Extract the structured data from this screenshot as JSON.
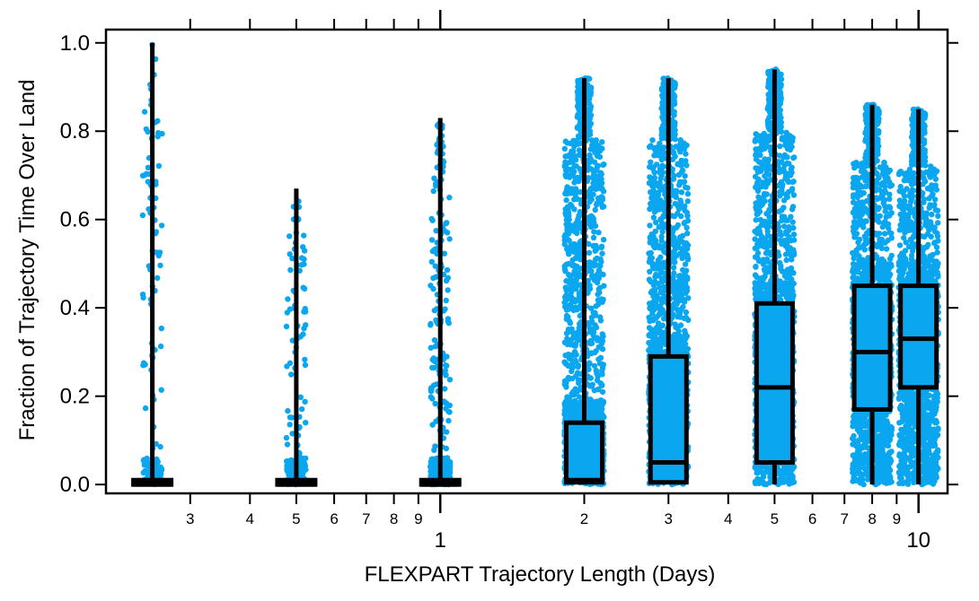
{
  "chart_data": {
    "type": "scatter",
    "subtype": "box-plot-with-jittered-points",
    "xlabel": "FLEXPART Trajectory Length (Days)",
    "ylabel": "Fraction of Trajectory Time Over Land",
    "x_scale": "log",
    "xlim_days": [
      0.2,
      11.5
    ],
    "ylim": [
      -0.02,
      1.03
    ],
    "y_ticks": [
      "0.0",
      "0.2",
      "0.4",
      "0.6",
      "0.8",
      "1.0"
    ],
    "x_major_ticks": [
      {
        "value": 1,
        "label": "1"
      },
      {
        "value": 10,
        "label": "10"
      }
    ],
    "x_minor_ticks": [
      {
        "value": 0.3,
        "label": "3"
      },
      {
        "value": 0.4,
        "label": "4"
      },
      {
        "value": 0.5,
        "label": "5"
      },
      {
        "value": 0.6,
        "label": "6"
      },
      {
        "value": 0.7,
        "label": "7"
      },
      {
        "value": 0.8,
        "label": "8"
      },
      {
        "value": 0.9,
        "label": "9"
      },
      {
        "value": 2,
        "label": "2"
      },
      {
        "value": 3,
        "label": "3"
      },
      {
        "value": 4,
        "label": "4"
      },
      {
        "value": 5,
        "label": "5"
      },
      {
        "value": 6,
        "label": "6"
      },
      {
        "value": 7,
        "label": "7"
      },
      {
        "value": 8,
        "label": "8"
      },
      {
        "value": 9,
        "label": "9"
      }
    ],
    "point_color": "#0aa7f0",
    "box_color": "#000000",
    "groups": [
      {
        "days": 0.25,
        "min": 0.0,
        "q1": 0.0,
        "median": 0.0,
        "q3": 0.01,
        "max": 1.0,
        "density": "sparse"
      },
      {
        "days": 0.5,
        "min": 0.0,
        "q1": 0.0,
        "median": 0.0,
        "q3": 0.01,
        "max": 0.67,
        "density": "sparse"
      },
      {
        "days": 1,
        "min": 0.0,
        "q1": 0.0,
        "median": 0.0,
        "q3": 0.01,
        "max": 0.83,
        "density": "medium"
      },
      {
        "days": 2,
        "min": 0.0,
        "q1": 0.005,
        "median": 0.01,
        "q3": 0.14,
        "max": 0.92,
        "density": "dense"
      },
      {
        "days": 3,
        "min": 0.0,
        "q1": 0.005,
        "median": 0.05,
        "q3": 0.29,
        "max": 0.92,
        "density": "dense"
      },
      {
        "days": 5,
        "min": 0.0,
        "q1": 0.05,
        "median": 0.22,
        "q3": 0.41,
        "max": 0.94,
        "density": "dense"
      },
      {
        "days": 8,
        "min": 0.0,
        "q1": 0.17,
        "median": 0.3,
        "q3": 0.45,
        "max": 0.86,
        "density": "dense"
      },
      {
        "days": 10,
        "min": 0.0,
        "q1": 0.22,
        "median": 0.33,
        "q3": 0.45,
        "max": 0.85,
        "density": "dense"
      }
    ]
  }
}
